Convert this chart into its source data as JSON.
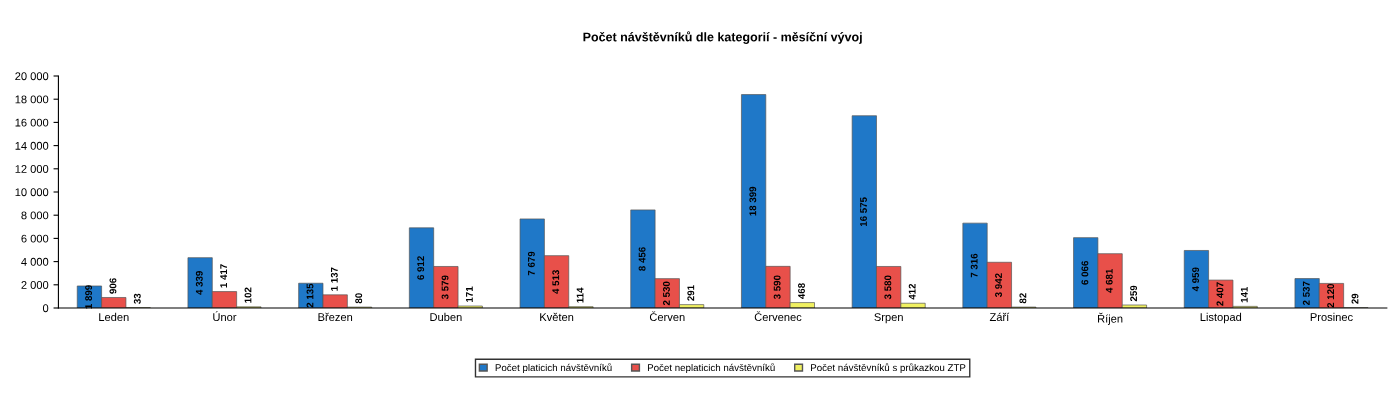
{
  "chart_data": {
    "type": "bar",
    "title": "Počet návštěvníků dle kategorií - měsíční vývoj",
    "categories": [
      "Leden",
      "Únor",
      "Březen",
      "Duben",
      "Květen",
      "Červen",
      "Červenec",
      "Srpen",
      "Září",
      "Říjen",
      "Listopad",
      "Prosinec"
    ],
    "series": [
      {
        "name": "Počet platicich návštěvníků",
        "color": "#1f78c8",
        "values": [
          1899,
          4339,
          2135,
          6912,
          7679,
          8456,
          18399,
          16575,
          7316,
          6066,
          4959,
          2537
        ],
        "value_labels": [
          "1 899",
          "4 339",
          "2 135",
          "6 912",
          "7 679",
          "8 456",
          "18 399",
          "16 575",
          "7 316",
          "6 066",
          "4 959",
          "2 537"
        ]
      },
      {
        "name": "Počet neplaticich návštěvníků",
        "color": "#e8504a",
        "values": [
          906,
          1417,
          1137,
          3579,
          4513,
          2530,
          3590,
          3580,
          3942,
          4681,
          2407,
          2120
        ],
        "value_labels": [
          "906",
          "1 417",
          "1 137",
          "3 579",
          "4 513",
          "2 530",
          "3 590",
          "3 580",
          "3 942",
          "4 681",
          "2 407",
          "2 120"
        ]
      },
      {
        "name": "Počet návštěvníků s průkazkou ZTP",
        "color": "#f0f060",
        "values": [
          33,
          102,
          80,
          171,
          114,
          291,
          468,
          412,
          82,
          259,
          141,
          29
        ],
        "value_labels": [
          "33",
          "102",
          "80",
          "171",
          "114",
          "291",
          "468",
          "412",
          "82",
          "259",
          "141",
          "29"
        ]
      }
    ],
    "ylim": [
      0,
      20000
    ],
    "yticks": [
      {
        "value": 0,
        "label": "0"
      },
      {
        "value": 2000,
        "label": "2 000"
      },
      {
        "value": 4000,
        "label": "4 000"
      },
      {
        "value": 6000,
        "label": "6 000"
      },
      {
        "value": 8000,
        "label": "8 000"
      },
      {
        "value": 10000,
        "label": "10 000"
      },
      {
        "value": 12000,
        "label": "12 000"
      },
      {
        "value": 14000,
        "label": "14 000"
      },
      {
        "value": 16000,
        "label": "16 000"
      },
      {
        "value": 18000,
        "label": "18 000"
      },
      {
        "value": 20000,
        "label": "20 000"
      }
    ],
    "grid": false,
    "legend": "bottom"
  }
}
